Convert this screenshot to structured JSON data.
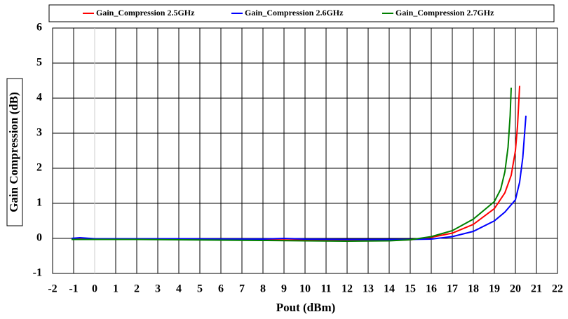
{
  "chart_data": {
    "type": "line",
    "xlabel": "Pout (dBm)",
    "ylabel": "Gain Compression (dB)",
    "xlim": [
      -2,
      22
    ],
    "xticks": [
      -2,
      -1,
      0,
      1,
      2,
      3,
      4,
      5,
      6,
      7,
      8,
      9,
      10,
      11,
      12,
      13,
      14,
      15,
      16,
      17,
      18,
      19,
      20,
      21,
      22
    ],
    "ylim": [
      -1,
      6
    ],
    "yticks": [
      -1,
      0,
      1,
      2,
      3,
      4,
      5,
      6
    ],
    "grid": true,
    "legend": "top",
    "series": [
      {
        "name": "Gain_Compression 2.5GHz",
        "color": "#ff0000",
        "x": [
          -1.1,
          0,
          2,
          4,
          6,
          8,
          10,
          12,
          14,
          15,
          16,
          17,
          18,
          19,
          19.5,
          19.8,
          20,
          20.1,
          20.2
        ],
        "values": [
          0,
          -0.02,
          -0.02,
          -0.03,
          -0.03,
          -0.04,
          -0.05,
          -0.06,
          -0.06,
          -0.04,
          0.03,
          0.15,
          0.4,
          0.85,
          1.3,
          1.8,
          2.5,
          3.2,
          4.35
        ]
      },
      {
        "name": "Gain_Compression 2.6GHz",
        "color": "#0000ff",
        "x": [
          -1.1,
          -0.7,
          0,
          2,
          4,
          6,
          8,
          9,
          10,
          12,
          14,
          15,
          16,
          17,
          18,
          19,
          19.5,
          20,
          20.2,
          20.35,
          20.5
        ],
        "values": [
          0,
          0.02,
          -0.01,
          -0.01,
          -0.01,
          -0.02,
          -0.02,
          0,
          -0.02,
          -0.03,
          -0.03,
          -0.03,
          -0.02,
          0.05,
          0.2,
          0.5,
          0.75,
          1.1,
          1.6,
          2.3,
          3.5
        ]
      },
      {
        "name": "Gain_Compression 2.7GHz",
        "color": "#008000",
        "x": [
          -1.1,
          0,
          2,
          4,
          6,
          8,
          10,
          12,
          14,
          15,
          16,
          17,
          18,
          19,
          19.3,
          19.5,
          19.65,
          19.75,
          19.8
        ],
        "values": [
          -0.03,
          -0.03,
          -0.03,
          -0.04,
          -0.05,
          -0.06,
          -0.07,
          -0.08,
          -0.07,
          -0.04,
          0.05,
          0.22,
          0.55,
          1.05,
          1.4,
          1.9,
          2.6,
          3.5,
          4.3
        ]
      }
    ]
  }
}
